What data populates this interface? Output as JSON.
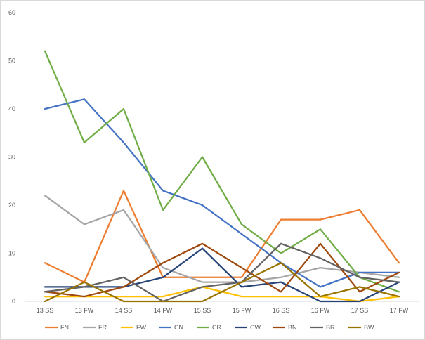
{
  "chart_data": {
    "type": "line",
    "title": "",
    "xlabel": "",
    "ylabel": "",
    "ylim": [
      0,
      60
    ],
    "yticks": [
      "0",
      "10",
      "20",
      "30",
      "40",
      "50",
      "60"
    ],
    "grid": false,
    "legend_position": "bottom",
    "categories": [
      "13 SS",
      "13 FW",
      "14 SS",
      "14 FW",
      "15 SS",
      "15 FW",
      "16 SS",
      "16 FW",
      "17 SS",
      "17 FW"
    ],
    "series": [
      {
        "name": "FN",
        "color": "#ed7d31",
        "values": [
          8,
          4,
          23,
          5,
          5,
          5,
          17,
          17,
          19,
          8
        ]
      },
      {
        "name": "FR",
        "color": "#a5a5a5",
        "values": [
          22,
          16,
          19,
          7,
          4,
          4,
          5,
          7,
          6,
          5
        ]
      },
      {
        "name": "FW",
        "color": "#ffc000",
        "values": [
          1,
          1,
          1,
          1,
          3,
          1,
          1,
          1,
          0,
          1
        ]
      },
      {
        "name": "CN",
        "color": "#4472c4",
        "values": [
          40,
          42,
          33,
          23,
          20,
          14,
          8,
          3,
          6,
          6
        ]
      },
      {
        "name": "CR",
        "color": "#70ad47",
        "values": [
          52,
          33,
          40,
          19,
          30,
          16,
          10,
          15,
          5,
          2
        ]
      },
      {
        "name": "CW",
        "color": "#264478",
        "values": [
          3,
          3,
          3,
          5,
          11,
          3,
          4,
          0,
          0,
          4
        ]
      },
      {
        "name": "BN",
        "color": "#9e480e",
        "values": [
          2,
          1,
          3,
          8,
          12,
          7,
          2,
          12,
          2,
          6
        ]
      },
      {
        "name": "BR",
        "color": "#636363",
        "values": [
          2,
          3,
          5,
          0,
          3,
          4,
          12,
          9,
          5,
          4
        ]
      },
      {
        "name": "BW",
        "color": "#997300",
        "values": [
          0,
          4,
          0,
          0,
          0,
          4,
          8,
          1,
          3,
          1
        ]
      }
    ]
  }
}
